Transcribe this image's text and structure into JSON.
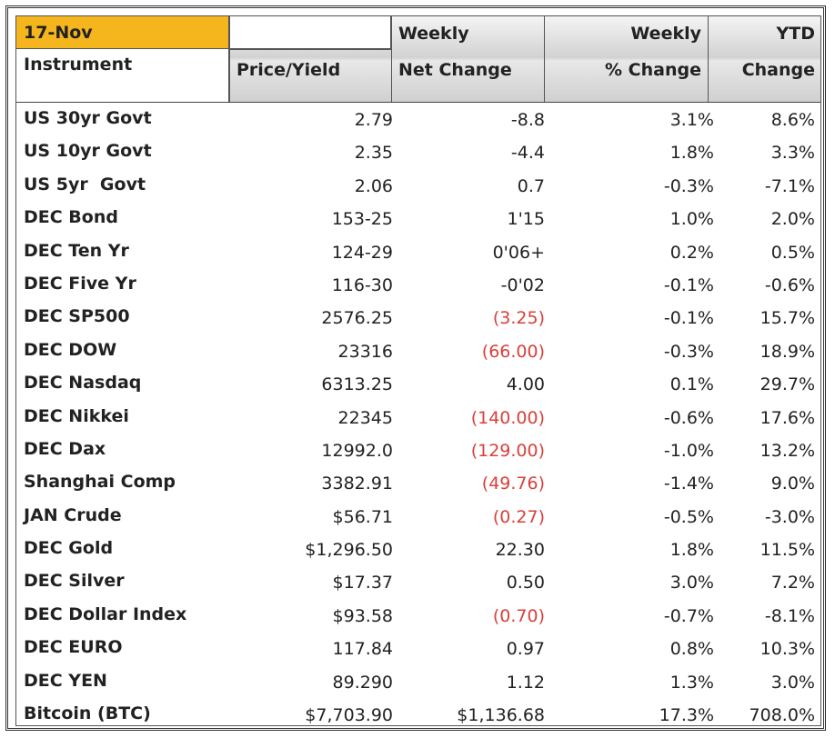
{
  "header": {
    "date": "17-Nov",
    "col1": "Instrument",
    "col2": "Price/Yield",
    "col3_top": "Weekly",
    "col3_bottom": "Net Change",
    "col4_top": "Weekly",
    "col4_bottom": "% Change",
    "col5_top": "YTD",
    "col5_bottom": "Change"
  },
  "rows": [
    {
      "name": "US 30yr Govt",
      "price": "2.79",
      "net": "-8.8",
      "pct": "3.1%",
      "ytd": "8.6%"
    },
    {
      "name": "US 10yr Govt",
      "price": "2.35",
      "net": "-4.4",
      "pct": "1.8%",
      "ytd": "3.3%"
    },
    {
      "name": "US 5yr  Govt",
      "price": "2.06",
      "net": "0.7",
      "pct": "-0.3%",
      "ytd": "-7.1%"
    },
    {
      "name": "DEC Bond",
      "price": "153-25",
      "net": "1'15",
      "pct": "1.0%",
      "ytd": "2.0%"
    },
    {
      "name": "DEC Ten Yr",
      "price": "124-29",
      "net": "0'06+",
      "pct": "0.2%",
      "ytd": "0.5%"
    },
    {
      "name": "DEC Five Yr",
      "price": "116-30",
      "net": "-0'02",
      "pct": "-0.1%",
      "ytd": "-0.6%"
    },
    {
      "name": "DEC SP500",
      "price": "2576.25",
      "net": "(3.25)",
      "pct": "-0.1%",
      "ytd": "15.7%"
    },
    {
      "name": "DEC DOW",
      "price": "23316",
      "net": "(66.00)",
      "pct": "-0.3%",
      "ytd": "18.9%"
    },
    {
      "name": "DEC Nasdaq",
      "price": "6313.25",
      "net": "4.00",
      "pct": "0.1%",
      "ytd": "29.7%"
    },
    {
      "name": "DEC Nikkei",
      "price": "22345",
      "net": "(140.00)",
      "pct": "-0.6%",
      "ytd": "17.6%"
    },
    {
      "name": "DEC Dax",
      "price": "12992.0",
      "net": "(129.00)",
      "pct": "-1.0%",
      "ytd": "13.2%"
    },
    {
      "name": "Shanghai Comp",
      "price": "3382.91",
      "net": "(49.76)",
      "pct": "-1.4%",
      "ytd": "9.0%"
    },
    {
      "name": "JAN Crude",
      "price": "$56.71",
      "net": "(0.27)",
      "pct": "-0.5%",
      "ytd": "-3.0%"
    },
    {
      "name": "DEC Gold",
      "price": "$1,296.50",
      "net": "22.30",
      "pct": "1.8%",
      "ytd": "11.5%"
    },
    {
      "name": "DEC Silver",
      "price": "$17.37",
      "net": "0.50",
      "pct": "3.0%",
      "ytd": "7.2%"
    },
    {
      "name": "DEC Dollar Index",
      "price": "$93.58",
      "net": "(0.70)",
      "pct": "-0.7%",
      "ytd": "-8.1%"
    },
    {
      "name": "DEC EURO",
      "price": "117.84",
      "net": "0.97",
      "pct": "0.8%",
      "ytd": "10.3%"
    },
    {
      "name": "DEC YEN",
      "price": "89.290",
      "net": "1.12",
      "pct": "1.3%",
      "ytd": "3.0%"
    },
    {
      "name": "Bitcoin (BTC)",
      "price": "$7,703.90",
      "net": "$1,136.68",
      "pct": "17.3%",
      "ytd": "708.0%"
    }
  ],
  "colors": {
    "date_cell": "#f5b51d",
    "negative": "#d9403a",
    "text": "#222222"
  }
}
